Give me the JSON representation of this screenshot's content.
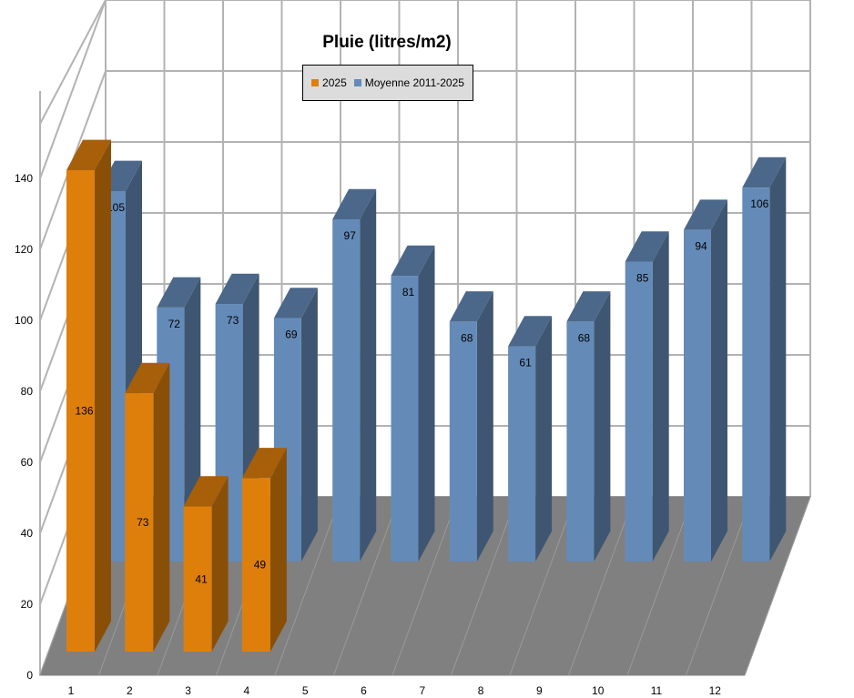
{
  "chart_data": {
    "type": "bar",
    "title": "Pluie (litres/m2)",
    "categories": [
      "1",
      "2",
      "3",
      "4",
      "5",
      "6",
      "7",
      "8",
      "9",
      "10",
      "11",
      "12"
    ],
    "series": [
      {
        "name": "2025",
        "color": "#de7f0c",
        "values": [
          136,
          73,
          41,
          49,
          null,
          null,
          null,
          null,
          null,
          null,
          null,
          null
        ]
      },
      {
        "name": "Moyenne 2011-2025",
        "color": "#648bb8",
        "values": [
          105,
          72,
          73,
          69,
          97,
          81,
          68,
          61,
          68,
          85,
          94,
          106
        ]
      }
    ],
    "y_ticks": [
      "0",
      "20",
      "40",
      "60",
      "80",
      "100",
      "120",
      "140"
    ],
    "ylim": [
      0,
      140
    ],
    "grid": true,
    "legend_position": "top-center",
    "style": "3d-columns"
  }
}
